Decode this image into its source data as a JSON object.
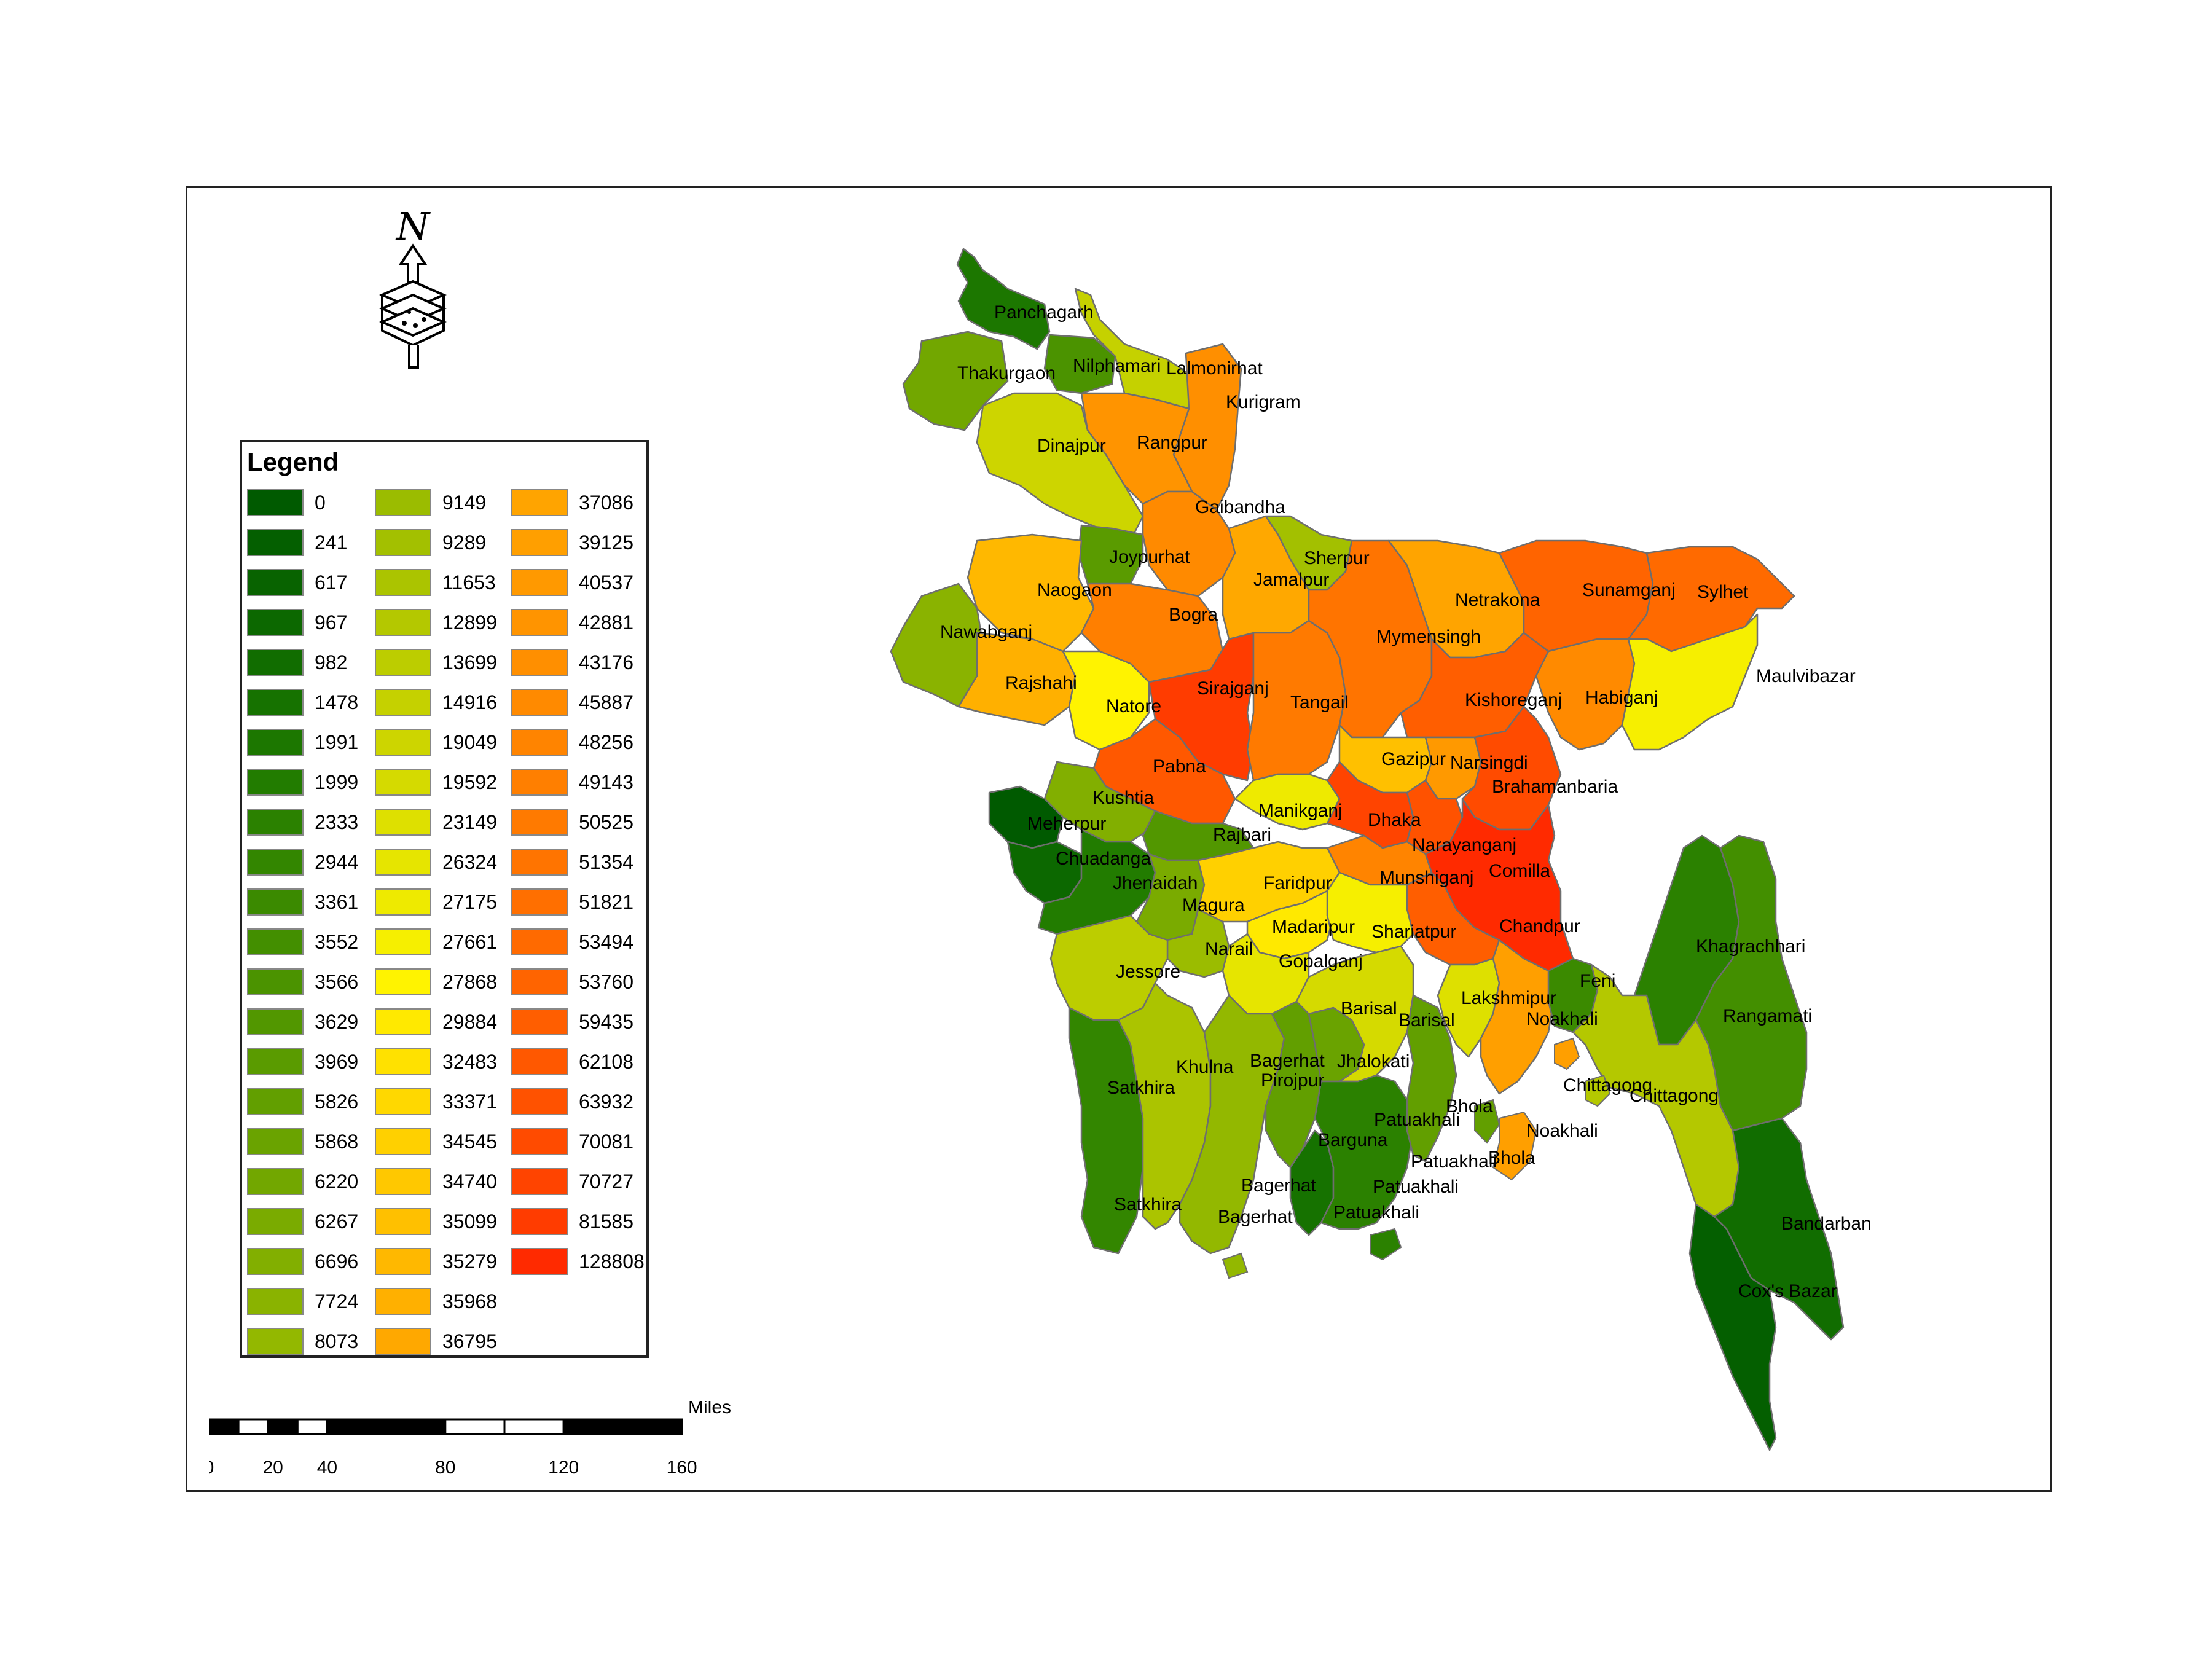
{
  "legend": {
    "title": "Legend",
    "items": [
      {
        "label": "0",
        "color": "#005a00"
      },
      {
        "label": "241",
        "color": "#045f00"
      },
      {
        "label": "617",
        "color": "#086300"
      },
      {
        "label": "967",
        "color": "#0c6800"
      },
      {
        "label": "982",
        "color": "#116d00"
      },
      {
        "label": "1478",
        "color": "#167200"
      },
      {
        "label": "1991",
        "color": "#1c7700"
      },
      {
        "label": "1999",
        "color": "#227c00"
      },
      {
        "label": "2333",
        "color": "#2b8100"
      },
      {
        "label": "2944",
        "color": "#338600"
      },
      {
        "label": "3361",
        "color": "#3b8a00"
      },
      {
        "label": "3552",
        "color": "#438f00"
      },
      {
        "label": "3566",
        "color": "#4b9300"
      },
      {
        "label": "3629",
        "color": "#529700"
      },
      {
        "label": "3969",
        "color": "#5a9b00"
      },
      {
        "label": "5826",
        "color": "#629f00"
      },
      {
        "label": "5868",
        "color": "#6aa300"
      },
      {
        "label": "6220",
        "color": "#72a700"
      },
      {
        "label": "6267",
        "color": "#7aab00"
      },
      {
        "label": "6696",
        "color": "#82af00"
      },
      {
        "label": "7724",
        "color": "#8ab300"
      },
      {
        "label": "8073",
        "color": "#93b800"
      },
      {
        "label": "9149",
        "color": "#9bbc00"
      },
      {
        "label": "9289",
        "color": "#a3c000"
      },
      {
        "label": "11653",
        "color": "#abc400"
      },
      {
        "label": "12899",
        "color": "#b4c800"
      },
      {
        "label": "13699",
        "color": "#bccd00"
      },
      {
        "label": "14916",
        "color": "#c5d100"
      },
      {
        "label": "19049",
        "color": "#cdd500"
      },
      {
        "label": "19592",
        "color": "#d5da00"
      },
      {
        "label": "23149",
        "color": "#dee000"
      },
      {
        "label": "26324",
        "color": "#e6e500"
      },
      {
        "label": "27175",
        "color": "#eeea00"
      },
      {
        "label": "27661",
        "color": "#f6ef00"
      },
      {
        "label": "27868",
        "color": "#fff300"
      },
      {
        "label": "29884",
        "color": "#ffe900"
      },
      {
        "label": "32483",
        "color": "#ffe100"
      },
      {
        "label": "33371",
        "color": "#ffd800"
      },
      {
        "label": "34545",
        "color": "#ffd000"
      },
      {
        "label": "34740",
        "color": "#ffc800"
      },
      {
        "label": "35099",
        "color": "#ffc000"
      },
      {
        "label": "35279",
        "color": "#ffb800"
      },
      {
        "label": "35968",
        "color": "#ffb000"
      },
      {
        "label": "36795",
        "color": "#ffa800"
      },
      {
        "label": "37086",
        "color": "#ffa400"
      },
      {
        "label": "39125",
        "color": "#ff9f00"
      },
      {
        "label": "40537",
        "color": "#ff9900"
      },
      {
        "label": "42881",
        "color": "#ff9400"
      },
      {
        "label": "43176",
        "color": "#ff8f00"
      },
      {
        "label": "45887",
        "color": "#ff8a00"
      },
      {
        "label": "48256",
        "color": "#ff8400"
      },
      {
        "label": "49143",
        "color": "#ff7f00"
      },
      {
        "label": "50525",
        "color": "#ff7a00"
      },
      {
        "label": "51354",
        "color": "#ff7400"
      },
      {
        "label": "51821",
        "color": "#ff6f00"
      },
      {
        "label": "53494",
        "color": "#ff6a00"
      },
      {
        "label": "53760",
        "color": "#ff6400"
      },
      {
        "label": "59435",
        "color": "#ff5e00"
      },
      {
        "label": "62108",
        "color": "#ff5800"
      },
      {
        "label": "63932",
        "color": "#ff5200"
      },
      {
        "label": "70081",
        "color": "#ff4b00"
      },
      {
        "label": "70727",
        "color": "#ff4400"
      },
      {
        "label": "81585",
        "color": "#ff3c00"
      },
      {
        "label": "128808",
        "color": "#ff2a00"
      }
    ]
  },
  "north_arrow": {
    "label": "N"
  },
  "scale_bar": {
    "unit": "Miles",
    "ticks": [
      "0",
      "20",
      "40",
      "80",
      "120",
      "160"
    ]
  },
  "districts": [
    {
      "name": "Panchagarh",
      "value": "1991"
    },
    {
      "name": "Thakurgaon",
      "value": "6220"
    },
    {
      "name": "Nilphamari",
      "value": "3566"
    },
    {
      "name": "Lalmonirhat",
      "value": "14916"
    },
    {
      "name": "Kurigram",
      "value": "43176"
    },
    {
      "name": "Dinajpur",
      "value": "19049"
    },
    {
      "name": "Rangpur",
      "value": "42881"
    },
    {
      "name": "Gaibandha",
      "value": "45887"
    },
    {
      "name": "Joypurhat",
      "value": "3969"
    },
    {
      "name": "Sherpur",
      "value": "9289"
    },
    {
      "name": "Naogaon",
      "value": "35279"
    },
    {
      "name": "Jamalpur",
      "value": "36795"
    },
    {
      "name": "Netrakona",
      "value": "37086"
    },
    {
      "name": "Sunamganj",
      "value": "53760"
    },
    {
      "name": "Sylhet",
      "value": "53494"
    },
    {
      "name": "Nawabganj",
      "value": "7724"
    },
    {
      "name": "Bogra",
      "value": "49143"
    },
    {
      "name": "Mymensingh",
      "value": "51354"
    },
    {
      "name": "Rajshahi",
      "value": "35968"
    },
    {
      "name": "Natore",
      "value": "27868"
    },
    {
      "name": "Sirajganj",
      "value": "81585"
    },
    {
      "name": "Tangail",
      "value": "50525"
    },
    {
      "name": "Kishoreganj",
      "value": "59435"
    },
    {
      "name": "Habiganj",
      "value": "45887"
    },
    {
      "name": "Maulvibazar",
      "value": "27661"
    },
    {
      "name": "Pabna",
      "value": "62108"
    },
    {
      "name": "Gazipur",
      "value": "35099"
    },
    {
      "name": "Narsingdi",
      "value": "40537"
    },
    {
      "name": "Brahamanbaria",
      "value": "70081"
    },
    {
      "name": "Kushtia",
      "value": "6696"
    },
    {
      "name": "Meherpur",
      "value": "0"
    },
    {
      "name": "Manikganj",
      "value": "27175"
    },
    {
      "name": "Dhaka",
      "value": "70727"
    },
    {
      "name": "Rajbari",
      "value": "3629"
    },
    {
      "name": "Chuadanga",
      "value": "967"
    },
    {
      "name": "Narayanganj",
      "value": "63932"
    },
    {
      "name": "Jhenaidah",
      "value": "1999"
    },
    {
      "name": "Faridpur",
      "value": "34545"
    },
    {
      "name": "Munshiganj",
      "value": "48256"
    },
    {
      "name": "Comilla",
      "value": "128808"
    },
    {
      "name": "Magura",
      "value": "6267"
    },
    {
      "name": "Madaripur",
      "value": "29884"
    },
    {
      "name": "Shariatpur",
      "value": "27661"
    },
    {
      "name": "Chandpur",
      "value": "59435"
    },
    {
      "name": "Narail",
      "value": "9149"
    },
    {
      "name": "Gopalganj",
      "value": "26324"
    },
    {
      "name": "Khagrachhari",
      "value": "2333"
    },
    {
      "name": "Jessore",
      "value": "13699"
    },
    {
      "name": "Feni",
      "value": "3361"
    },
    {
      "name": "Lakshmipur",
      "value": "23149"
    },
    {
      "name": "Barisal",
      "value": "19592"
    },
    {
      "name": "Noakhali",
      "value": "39125"
    },
    {
      "name": "Rangamati",
      "value": "3552"
    },
    {
      "name": "Khulna",
      "value": "11653"
    },
    {
      "name": "Bagerhat",
      "value": "8073"
    },
    {
      "name": "Jhalokati",
      "value": "5868"
    },
    {
      "name": "Pirojpur",
      "value": "5826"
    },
    {
      "name": "Satkhira",
      "value": "2944"
    },
    {
      "name": "Chittagong",
      "value": "12899"
    },
    {
      "name": "Bhola",
      "value": "5826"
    },
    {
      "name": "Patuakhali",
      "value": "2333"
    },
    {
      "name": "Barguna",
      "value": "1478"
    },
    {
      "name": "Bandarban",
      "value": "982"
    },
    {
      "name": "Cox's Bazar",
      "value": "241"
    }
  ],
  "map_labels": [
    "Panchagarh",
    "Thakurgaon",
    "Nilphamari",
    "Lalmonirhat",
    "Kurigram",
    "Dinajpur",
    "Rangpur",
    "Gaibandha",
    "Joypurhat",
    "Sherpur",
    "Naogaon",
    "Jamalpur",
    "Netrakona",
    "Sunamganj",
    "Sylhet",
    "Nawabganj",
    "Bogra",
    "Mymensingh",
    "Rajshahi",
    "Natore",
    "Sirajganj",
    "Tangail",
    "Kishoreganj",
    "Habiganj",
    "Maulvibazar",
    "Pabna",
    "Gazipur",
    "Narsingdi",
    "Brahamanbaria",
    "Kushtia",
    "Meherpur",
    "Manikganj",
    "Dhaka",
    "Rajbari",
    "Chuadanga",
    "Narayanganj",
    "Jhenaidah",
    "Faridpur",
    "Munshiganj",
    "Comilla",
    "Magura",
    "Madaripur",
    "Shariatpur",
    "Chandpur",
    "Narail",
    "Gopalganj",
    "Khagrachhari",
    "Jessore",
    "Feni",
    "Lakshmipur",
    "Barisal",
    "Barisal",
    "Noakhali",
    "Rangamati",
    "Khulna",
    "Bagerhat",
    "Jhalokati",
    "Pirojpur",
    "Satkhira",
    "Chittagong",
    "Chittagong",
    "Bhola",
    "Patuakhali",
    "Noakhali",
    "Barguna",
    "Patuakhali",
    "Bhola",
    "Bagerhat",
    "Patuakhali",
    "Satkhira",
    "Bagerhat",
    "Patuakhali",
    "Bandarban",
    "Cox's Bazar"
  ]
}
